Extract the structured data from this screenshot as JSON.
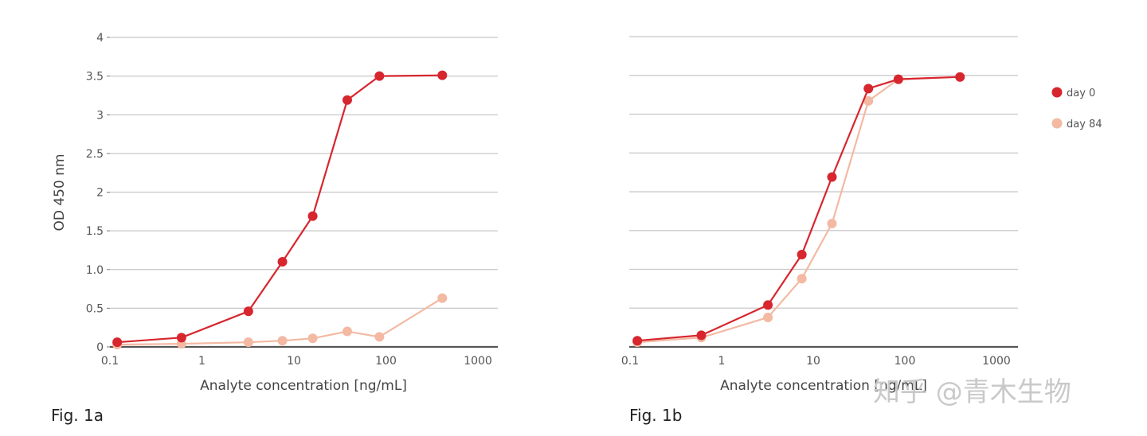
{
  "chart_data": [
    {
      "type": "line",
      "caption": "Fig. 1a",
      "xlabel": "Analyte concentration [ng/mL]",
      "ylabel": "OD 450 nm",
      "x_scale": "log",
      "xlim": [
        0.1,
        1000
      ],
      "ylim": [
        0,
        4
      ],
      "x_ticks": [
        "0.1",
        "1",
        "10",
        "100",
        "1000"
      ],
      "y_ticks": [
        "0",
        "0.5",
        "1.0",
        "1.5",
        "2",
        "2.5",
        "3",
        "3.5",
        "4"
      ],
      "grid": true,
      "legend": false,
      "series": [
        {
          "name": "day 0",
          "color": "#d7262e",
          "x": [
            0.12,
            0.6,
            3.2,
            7.5,
            16,
            38,
            85,
            410
          ],
          "y": [
            0.06,
            0.12,
            0.46,
            1.1,
            1.69,
            3.19,
            3.5,
            3.51
          ]
        },
        {
          "name": "day 84",
          "color": "#f3b9a3",
          "x": [
            0.12,
            0.6,
            3.2,
            7.5,
            16,
            38,
            85,
            410
          ],
          "y": [
            0.03,
            0.04,
            0.06,
            0.08,
            0.11,
            0.2,
            0.13,
            0.63
          ]
        }
      ]
    },
    {
      "type": "line",
      "caption": "Fig. 1b",
      "xlabel": "Analyte concentration [ng/mL]",
      "ylabel": "",
      "x_scale": "log",
      "xlim": [
        0.1,
        1000
      ],
      "ylim": [
        0,
        4
      ],
      "x_ticks": [
        "0.1",
        "1",
        "10",
        "100",
        "1000"
      ],
      "grid": true,
      "legend": true,
      "legend_position": "right",
      "series": [
        {
          "name": "day 0",
          "color": "#d7262e",
          "x": [
            0.12,
            0.6,
            3.2,
            7.5,
            16,
            40,
            85,
            400
          ],
          "y": [
            0.08,
            0.15,
            0.54,
            1.19,
            2.19,
            3.33,
            3.45,
            3.48
          ]
        },
        {
          "name": "day 84",
          "color": "#f3b9a3",
          "x": [
            0.12,
            0.6,
            3.2,
            7.5,
            16,
            40,
            85,
            400
          ],
          "y": [
            0.06,
            0.12,
            0.38,
            0.88,
            1.59,
            3.17,
            3.45,
            3.48
          ]
        }
      ]
    }
  ],
  "watermark": "知乎 @青木生物"
}
